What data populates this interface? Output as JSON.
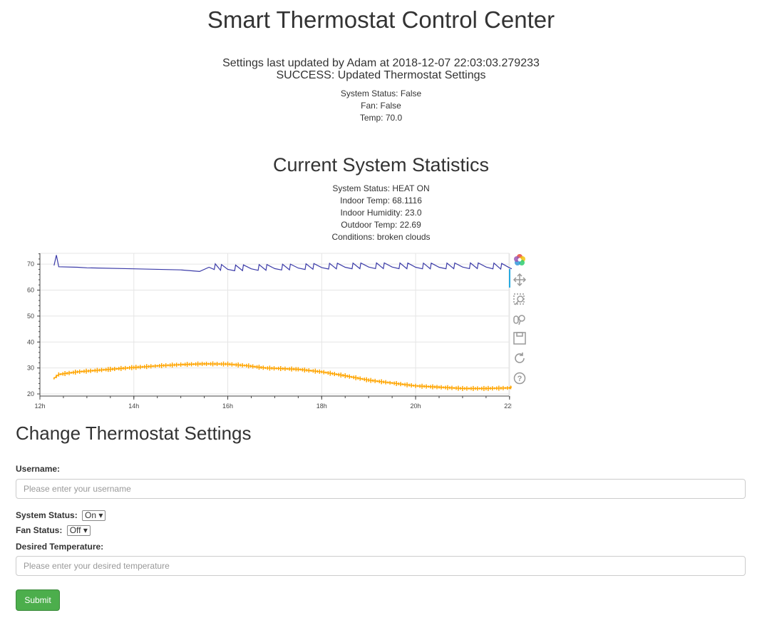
{
  "header": {
    "title": "Smart Thermostat Control Center"
  },
  "update": {
    "line1": "Settings last updated by Adam at 2018-12-07 22:03:03.279233",
    "line2": "SUCCESS: Updated Thermostat Settings"
  },
  "settings": {
    "system_status": "System Status: False",
    "fan": "Fan: False",
    "temp": "Temp: 70.0"
  },
  "stats": {
    "heading": "Current System Statistics",
    "system_status": "System Status: HEAT ON",
    "indoor_temp": "Indoor Temp: 68.1116",
    "indoor_humidity": "Indoor Humidity: 23.0",
    "outdoor_temp": "Outdoor Temp: 22.69",
    "conditions": "Conditions: broken clouds"
  },
  "toolbar": {
    "icons": [
      "bokeh-logo-icon",
      "pan-icon",
      "box-zoom-icon",
      "wheel-zoom-icon",
      "save-icon",
      "reset-icon",
      "help-icon"
    ]
  },
  "chart_data": {
    "type": "line",
    "x_unit": "hour of day",
    "xlim": [
      12,
      22.2
    ],
    "ylim": [
      20,
      75
    ],
    "x_ticks": [
      "12h",
      "14h",
      "16h",
      "18h",
      "20h",
      "22h"
    ],
    "y_ticks": [
      "20",
      "30",
      "40",
      "50",
      "60",
      "70"
    ],
    "grid": true,
    "series": [
      {
        "color": "#3b3ba8",
        "x": [
          12.3,
          12.35,
          12.4,
          12.8,
          13,
          14,
          15,
          15.4,
          15.6,
          16,
          16.5,
          17,
          17.5,
          18,
          18.5,
          19,
          19.5,
          20,
          20.5,
          21,
          21.5,
          22,
          22.05
        ],
        "y": [
          69.5,
          73.5,
          69,
          68.8,
          68.6,
          68.2,
          67.8,
          67.2,
          68.8,
          68,
          68.2,
          68.3,
          68.5,
          68.7,
          68.8,
          68.9,
          68.9,
          68.8,
          68.8,
          68.9,
          68.9,
          68.6,
          68.2
        ]
      },
      {
        "color": "#ffa500",
        "x": [
          12.3,
          12.4,
          12.8,
          13.5,
          14,
          14.5,
          15,
          15.5,
          16,
          16.4,
          16.8,
          17.5,
          18,
          18.5,
          19,
          19.5,
          20,
          20.5,
          21,
          21.5,
          22,
          22.05
        ],
        "y": [
          26,
          27.5,
          28.5,
          29.5,
          30.2,
          30.8,
          31.3,
          31.6,
          31.5,
          30.9,
          30,
          29.5,
          28.5,
          27,
          25.3,
          24.2,
          23.1,
          22.6,
          22.1,
          22.1,
          22.3,
          22.7
        ]
      }
    ]
  },
  "form": {
    "heading": "Change Thermostat Settings",
    "username_label": "Username:",
    "username_placeholder": "Please enter your username",
    "system_status_label": "System Status:",
    "system_status_value": "On",
    "fan_status_label": "Fan Status:",
    "fan_status_value": "Off",
    "desired_temp_label": "Desired Temperature:",
    "desired_temp_placeholder": "Please enter your desired temperature",
    "submit_label": "Submit"
  }
}
